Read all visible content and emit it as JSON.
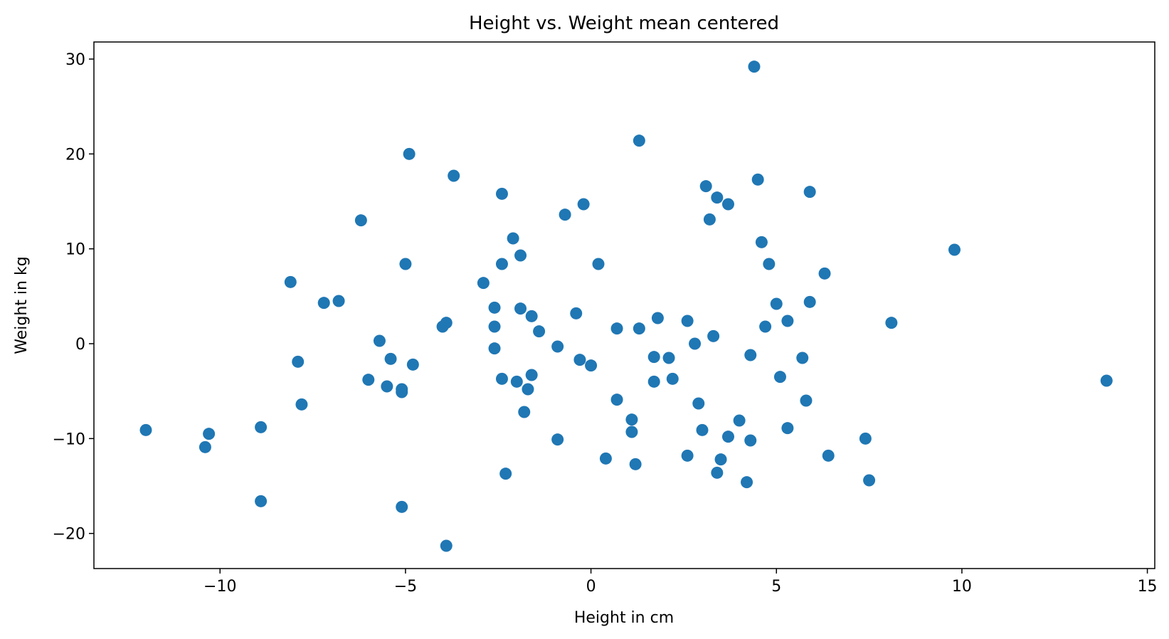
{
  "chart_data": {
    "type": "scatter",
    "title": "Height vs. Weight mean centered",
    "xlabel": "Height in cm",
    "ylabel": "Weight in kg",
    "xlim": [
      -13.4,
      15.2
    ],
    "ylim": [
      -23.7,
      31.8
    ],
    "xticks": [
      -10,
      -5,
      0,
      5,
      10,
      15
    ],
    "yticks": [
      -20,
      -10,
      0,
      10,
      20,
      30
    ],
    "grid": false,
    "marker_color": "#1f77b4",
    "points": [
      {
        "x": -12.0,
        "y": -9.1
      },
      {
        "x": -10.3,
        "y": -9.5
      },
      {
        "x": -10.4,
        "y": -10.9
      },
      {
        "x": -8.9,
        "y": -8.8
      },
      {
        "x": -8.9,
        "y": -16.6
      },
      {
        "x": -8.1,
        "y": 6.5
      },
      {
        "x": -7.9,
        "y": -1.9
      },
      {
        "x": -7.8,
        "y": -6.4
      },
      {
        "x": -7.2,
        "y": 4.3
      },
      {
        "x": -6.8,
        "y": 4.5
      },
      {
        "x": -6.2,
        "y": 13.0
      },
      {
        "x": -6.0,
        "y": -3.8
      },
      {
        "x": -5.7,
        "y": 0.3
      },
      {
        "x": -5.5,
        "y": -4.5
      },
      {
        "x": -5.4,
        "y": -1.6
      },
      {
        "x": -5.1,
        "y": -4.8
      },
      {
        "x": -5.1,
        "y": -5.1
      },
      {
        "x": -5.1,
        "y": -17.2
      },
      {
        "x": -5.0,
        "y": 8.4
      },
      {
        "x": -4.9,
        "y": 20.0
      },
      {
        "x": -4.8,
        "y": -2.2
      },
      {
        "x": -4.0,
        "y": 1.8
      },
      {
        "x": -3.9,
        "y": 2.2
      },
      {
        "x": -3.9,
        "y": -21.3
      },
      {
        "x": -3.7,
        "y": 17.7
      },
      {
        "x": -2.9,
        "y": 6.4
      },
      {
        "x": -2.6,
        "y": 3.8
      },
      {
        "x": -2.6,
        "y": 1.8
      },
      {
        "x": -2.6,
        "y": -0.5
      },
      {
        "x": -2.4,
        "y": 15.8
      },
      {
        "x": -2.4,
        "y": 8.4
      },
      {
        "x": -2.4,
        "y": -3.7
      },
      {
        "x": -2.3,
        "y": -13.7
      },
      {
        "x": -2.1,
        "y": 11.1
      },
      {
        "x": -2.0,
        "y": -4.0
      },
      {
        "x": -1.9,
        "y": 9.3
      },
      {
        "x": -1.9,
        "y": 3.7
      },
      {
        "x": -1.8,
        "y": -7.2
      },
      {
        "x": -1.7,
        "y": -4.8
      },
      {
        "x": -1.6,
        "y": -3.3
      },
      {
        "x": -1.6,
        "y": 2.9
      },
      {
        "x": -1.4,
        "y": 1.3
      },
      {
        "x": -0.9,
        "y": -0.3
      },
      {
        "x": -0.9,
        "y": -10.1
      },
      {
        "x": -0.7,
        "y": 13.6
      },
      {
        "x": -0.4,
        "y": 3.2
      },
      {
        "x": -0.3,
        "y": -1.7
      },
      {
        "x": -0.2,
        "y": 14.7
      },
      {
        "x": 0.0,
        "y": -2.3
      },
      {
        "x": 0.2,
        "y": 8.4
      },
      {
        "x": 0.4,
        "y": -12.1
      },
      {
        "x": 0.7,
        "y": 1.6
      },
      {
        "x": 0.7,
        "y": -5.9
      },
      {
        "x": 1.1,
        "y": -8.0
      },
      {
        "x": 1.1,
        "y": -9.3
      },
      {
        "x": 1.2,
        "y": -12.7
      },
      {
        "x": 1.3,
        "y": 1.6
      },
      {
        "x": 1.3,
        "y": 21.4
      },
      {
        "x": 1.7,
        "y": -1.4
      },
      {
        "x": 1.7,
        "y": -4.0
      },
      {
        "x": 1.8,
        "y": 2.7
      },
      {
        "x": 2.1,
        "y": -1.5
      },
      {
        "x": 2.2,
        "y": -3.7
      },
      {
        "x": 2.6,
        "y": 2.4
      },
      {
        "x": 2.6,
        "y": -11.8
      },
      {
        "x": 2.8,
        "y": 0.0
      },
      {
        "x": 2.9,
        "y": -6.3
      },
      {
        "x": 3.0,
        "y": -9.1
      },
      {
        "x": 3.1,
        "y": 16.6
      },
      {
        "x": 3.2,
        "y": 13.1
      },
      {
        "x": 3.3,
        "y": 0.8
      },
      {
        "x": 3.4,
        "y": 15.4
      },
      {
        "x": 3.4,
        "y": -13.6
      },
      {
        "x": 3.5,
        "y": -12.2
      },
      {
        "x": 3.7,
        "y": 14.7
      },
      {
        "x": 3.7,
        "y": -9.8
      },
      {
        "x": 4.0,
        "y": -8.1
      },
      {
        "x": 4.2,
        "y": -14.6
      },
      {
        "x": 4.3,
        "y": -1.2
      },
      {
        "x": 4.3,
        "y": -10.2
      },
      {
        "x": 4.4,
        "y": 29.2
      },
      {
        "x": 4.5,
        "y": 17.3
      },
      {
        "x": 4.6,
        "y": 10.7
      },
      {
        "x": 4.7,
        "y": 1.8
      },
      {
        "x": 4.8,
        "y": 8.4
      },
      {
        "x": 5.0,
        "y": 4.2
      },
      {
        "x": 5.1,
        "y": -3.5
      },
      {
        "x": 5.3,
        "y": 2.4
      },
      {
        "x": 5.3,
        "y": -8.9
      },
      {
        "x": 5.7,
        "y": -1.5
      },
      {
        "x": 5.8,
        "y": -6.0
      },
      {
        "x": 5.9,
        "y": 16.0
      },
      {
        "x": 5.9,
        "y": 4.4
      },
      {
        "x": 6.3,
        "y": 7.4
      },
      {
        "x": 6.4,
        "y": -11.8
      },
      {
        "x": 7.4,
        "y": -10.0
      },
      {
        "x": 7.5,
        "y": -14.4
      },
      {
        "x": 8.1,
        "y": 2.2
      },
      {
        "x": 9.8,
        "y": 9.9
      },
      {
        "x": 13.9,
        "y": -3.9
      }
    ]
  }
}
